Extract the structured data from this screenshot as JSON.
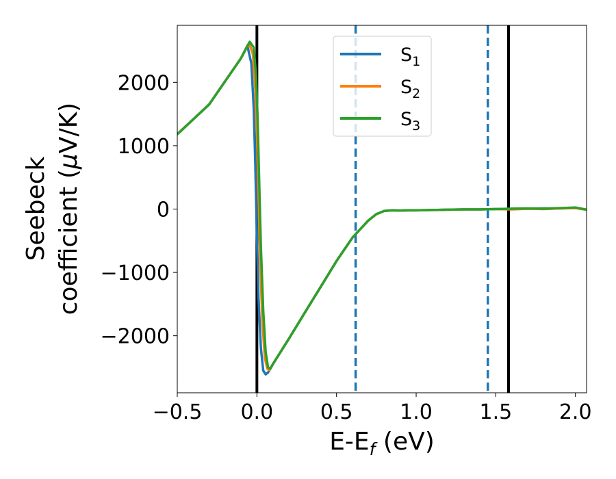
{
  "chart_data": {
    "type": "line",
    "xlabel": {
      "main": "E-E",
      "sub": "f",
      "suffix": " (eV)"
    },
    "ylabel": {
      "line1": "Seebeck",
      "line2_prefix": "coefficient  (",
      "line2_mu": "μ",
      "line2_suffix": "V/K)"
    },
    "xlim": [
      -0.5,
      2.07
    ],
    "ylim": [
      -2900,
      2900
    ],
    "xticks": [
      -0.5,
      0.0,
      0.5,
      1.0,
      1.5,
      2.0
    ],
    "xtick_labels": [
      "−0.5",
      "0.0",
      "0.5",
      "1.0",
      "1.5",
      "2.0"
    ],
    "yticks": [
      -2000,
      -1000,
      0,
      1000,
      2000
    ],
    "ytick_labels": [
      "−2000",
      "−1000",
      "0",
      "1000",
      "2000"
    ],
    "legend_position": "top-center",
    "grid": false,
    "vlines": [
      {
        "x": 0.0,
        "style": "solid",
        "color": "#000000"
      },
      {
        "x": 1.58,
        "style": "solid",
        "color": "#000000"
      },
      {
        "x": 0.62,
        "style": "dashed",
        "color": "#1f77b4"
      },
      {
        "x": 1.45,
        "style": "dashed",
        "color": "#1f77b4"
      }
    ],
    "series": [
      {
        "name": "S",
        "sub": "1",
        "color": "#1f77b4",
        "x": [
          -0.5,
          -0.3,
          -0.1,
          -0.06,
          -0.035,
          -0.02,
          -0.01,
          0.0,
          0.01,
          0.025,
          0.04,
          0.055,
          0.07,
          0.1,
          0.2,
          0.3,
          0.4,
          0.5,
          0.6,
          0.7,
          0.75,
          0.8,
          0.85,
          0.9,
          0.95,
          1.0,
          1.1,
          1.2,
          1.3,
          1.4,
          1.5,
          1.6,
          1.7,
          1.8,
          1.9,
          2.0,
          2.07
        ],
        "y": [
          1180,
          1650,
          2380,
          2580,
          2300,
          1600,
          700,
          -400,
          -1400,
          -2200,
          -2550,
          -2610,
          -2580,
          -2450,
          -2050,
          -1640,
          -1230,
          -820,
          -450,
          -180,
          -80,
          -30,
          -20,
          -25,
          -20,
          -20,
          -15,
          -10,
          -5,
          -5,
          0,
          5,
          5,
          10,
          10,
          20,
          -10
        ]
      },
      {
        "name": "S",
        "sub": "2",
        "color": "#ff7f0e",
        "x": [
          -0.5,
          -0.3,
          -0.1,
          -0.05,
          -0.025,
          -0.01,
          0.0,
          0.01,
          0.02,
          0.035,
          0.05,
          0.065,
          0.08,
          0.1,
          0.2,
          0.3,
          0.4,
          0.5,
          0.6,
          0.7,
          0.75,
          0.8,
          0.85,
          0.9,
          0.95,
          1.0,
          1.1,
          1.2,
          1.3,
          1.4,
          1.5,
          1.6,
          1.7,
          1.8,
          1.9,
          2.0,
          2.07
        ],
        "y": [
          1180,
          1650,
          2380,
          2620,
          2450,
          1900,
          1200,
          200,
          -800,
          -1800,
          -2350,
          -2520,
          -2540,
          -2450,
          -2050,
          -1640,
          -1230,
          -820,
          -450,
          -180,
          -80,
          -30,
          -20,
          -25,
          -20,
          -20,
          -15,
          -10,
          -5,
          -5,
          0,
          -5,
          5,
          0,
          10,
          15,
          -10
        ]
      },
      {
        "name": "S",
        "sub": "3",
        "color": "#2ca02c",
        "x": [
          -0.5,
          -0.3,
          -0.1,
          -0.045,
          -0.02,
          -0.005,
          0.005,
          0.015,
          0.025,
          0.04,
          0.055,
          0.07,
          0.085,
          0.1,
          0.2,
          0.3,
          0.4,
          0.5,
          0.6,
          0.7,
          0.75,
          0.8,
          0.85,
          0.9,
          0.95,
          1.0,
          1.1,
          1.2,
          1.3,
          1.4,
          1.5,
          1.6,
          1.7,
          1.8,
          1.9,
          2.0,
          2.07
        ],
        "y": [
          1180,
          1650,
          2380,
          2640,
          2550,
          2100,
          1400,
          400,
          -600,
          -1600,
          -2250,
          -2500,
          -2520,
          -2450,
          -2050,
          -1640,
          -1230,
          -820,
          -450,
          -180,
          -80,
          -30,
          -20,
          -25,
          -20,
          -20,
          -15,
          -10,
          -5,
          -5,
          0,
          5,
          10,
          5,
          15,
          25,
          -10
        ]
      }
    ]
  }
}
